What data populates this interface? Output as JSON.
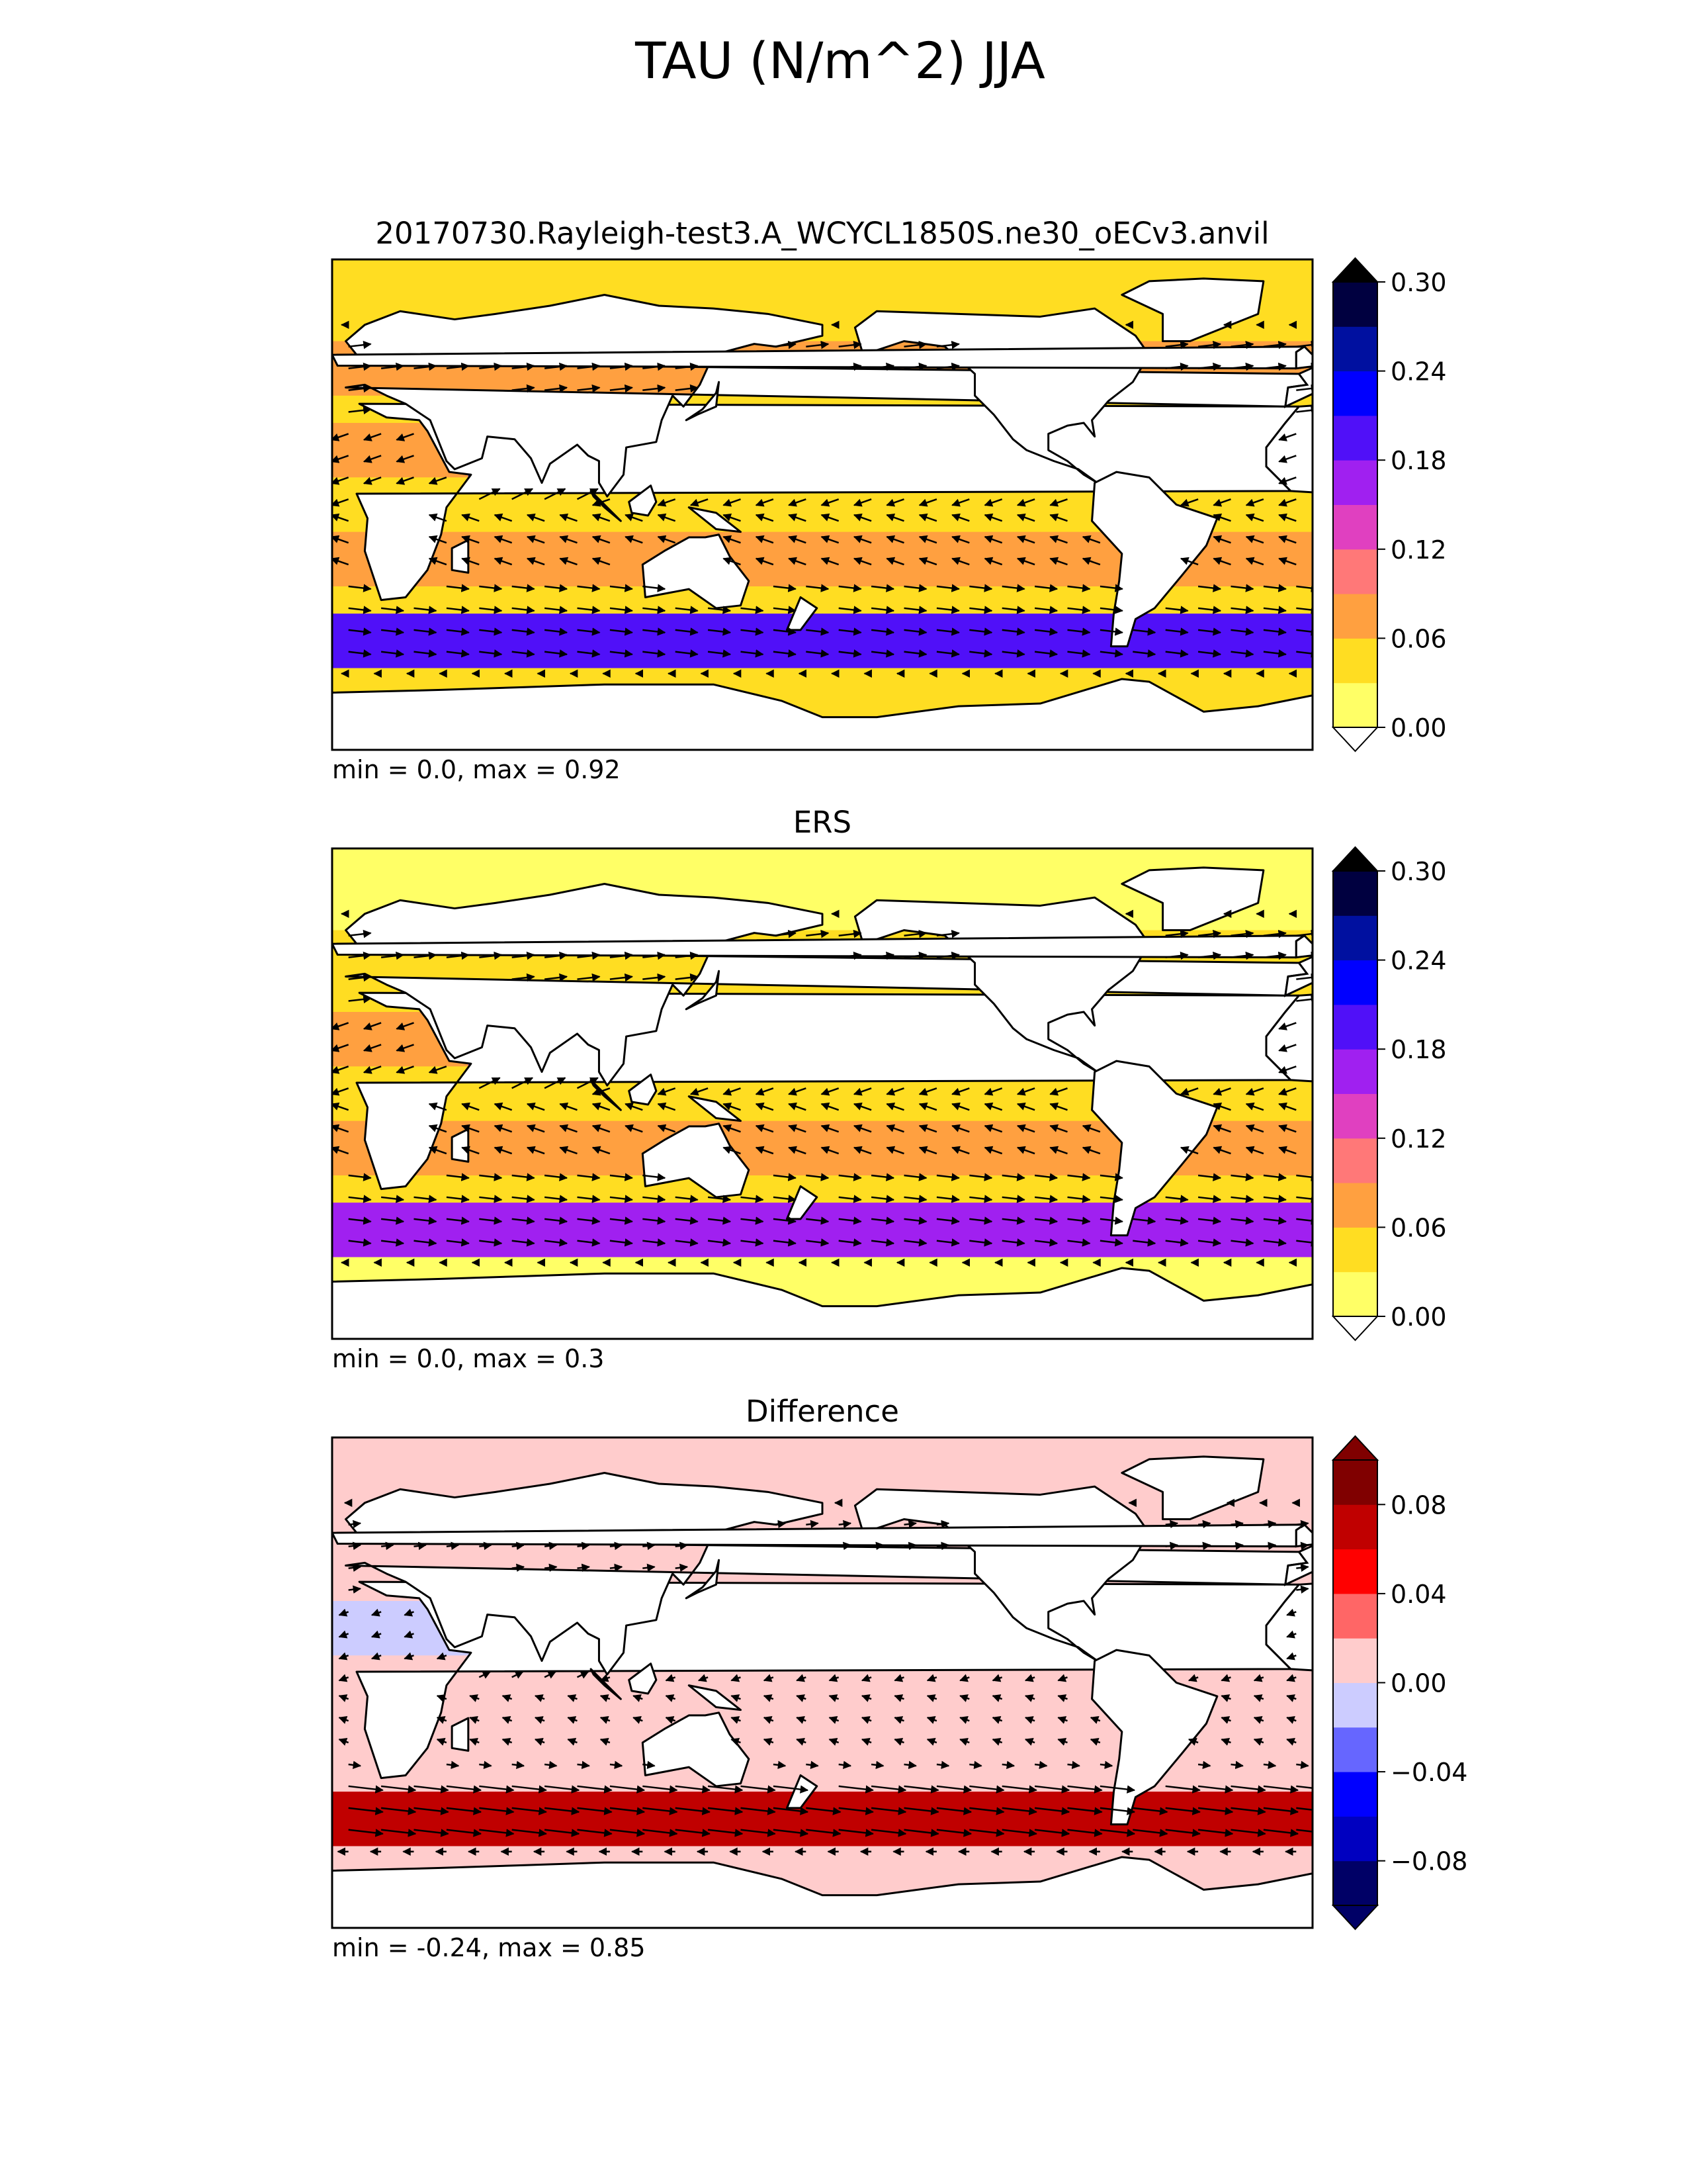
{
  "title": "TAU (N/m^2) JJA",
  "chart_data": [
    {
      "type": "heatmap",
      "title": "20170730.Rayleigh-test3.A_WCYCL1850S.ne30_oECv3.anvil",
      "stats": "min = 0.0, max = 0.92",
      "colorbar": {
        "ticks": [
          "0.00",
          "0.06",
          "0.12",
          "0.18",
          "0.24",
          "0.30"
        ],
        "range": [
          0.0,
          0.3
        ],
        "levels": [
          0.0,
          0.03,
          0.06,
          0.09,
          0.12,
          0.15,
          0.18,
          0.21,
          0.24,
          0.27,
          0.3
        ],
        "colors": [
          "#ffff66",
          "#ffdd22",
          "#ffa040",
          "#ff7878",
          "#e040c0",
          "#a020f0",
          "#5010f8",
          "#0000ff",
          "#0010a0",
          "#000040"
        ],
        "extend": "both"
      }
    },
    {
      "type": "heatmap",
      "title": "ERS",
      "stats": "min = 0.0, max = 0.3",
      "colorbar": {
        "ticks": [
          "0.00",
          "0.06",
          "0.12",
          "0.18",
          "0.24",
          "0.30"
        ],
        "range": [
          0.0,
          0.3
        ],
        "levels": [
          0.0,
          0.03,
          0.06,
          0.09,
          0.12,
          0.15,
          0.18,
          0.21,
          0.24,
          0.27,
          0.3
        ],
        "colors": [
          "#ffff66",
          "#ffdd22",
          "#ffa040",
          "#ff7878",
          "#e040c0",
          "#a020f0",
          "#5010f8",
          "#0000ff",
          "#0010a0",
          "#000040"
        ],
        "extend": "both"
      }
    },
    {
      "type": "heatmap",
      "title": "Difference",
      "stats": "min = -0.24, max = 0.85",
      "colorbar": {
        "ticks": [
          "−0.08",
          "−0.04",
          "0.00",
          "0.04",
          "0.08"
        ],
        "range": [
          -0.1,
          0.1
        ],
        "levels": [
          -0.1,
          -0.08,
          -0.06,
          -0.04,
          -0.02,
          0.0,
          0.02,
          0.04,
          0.06,
          0.08,
          0.1
        ],
        "colors": [
          "#000066",
          "#0000c0",
          "#0000ff",
          "#6666ff",
          "#ccccff",
          "#ffcccc",
          "#ff6666",
          "#ff0000",
          "#c00000",
          "#800000"
        ],
        "extend": "both"
      }
    }
  ]
}
